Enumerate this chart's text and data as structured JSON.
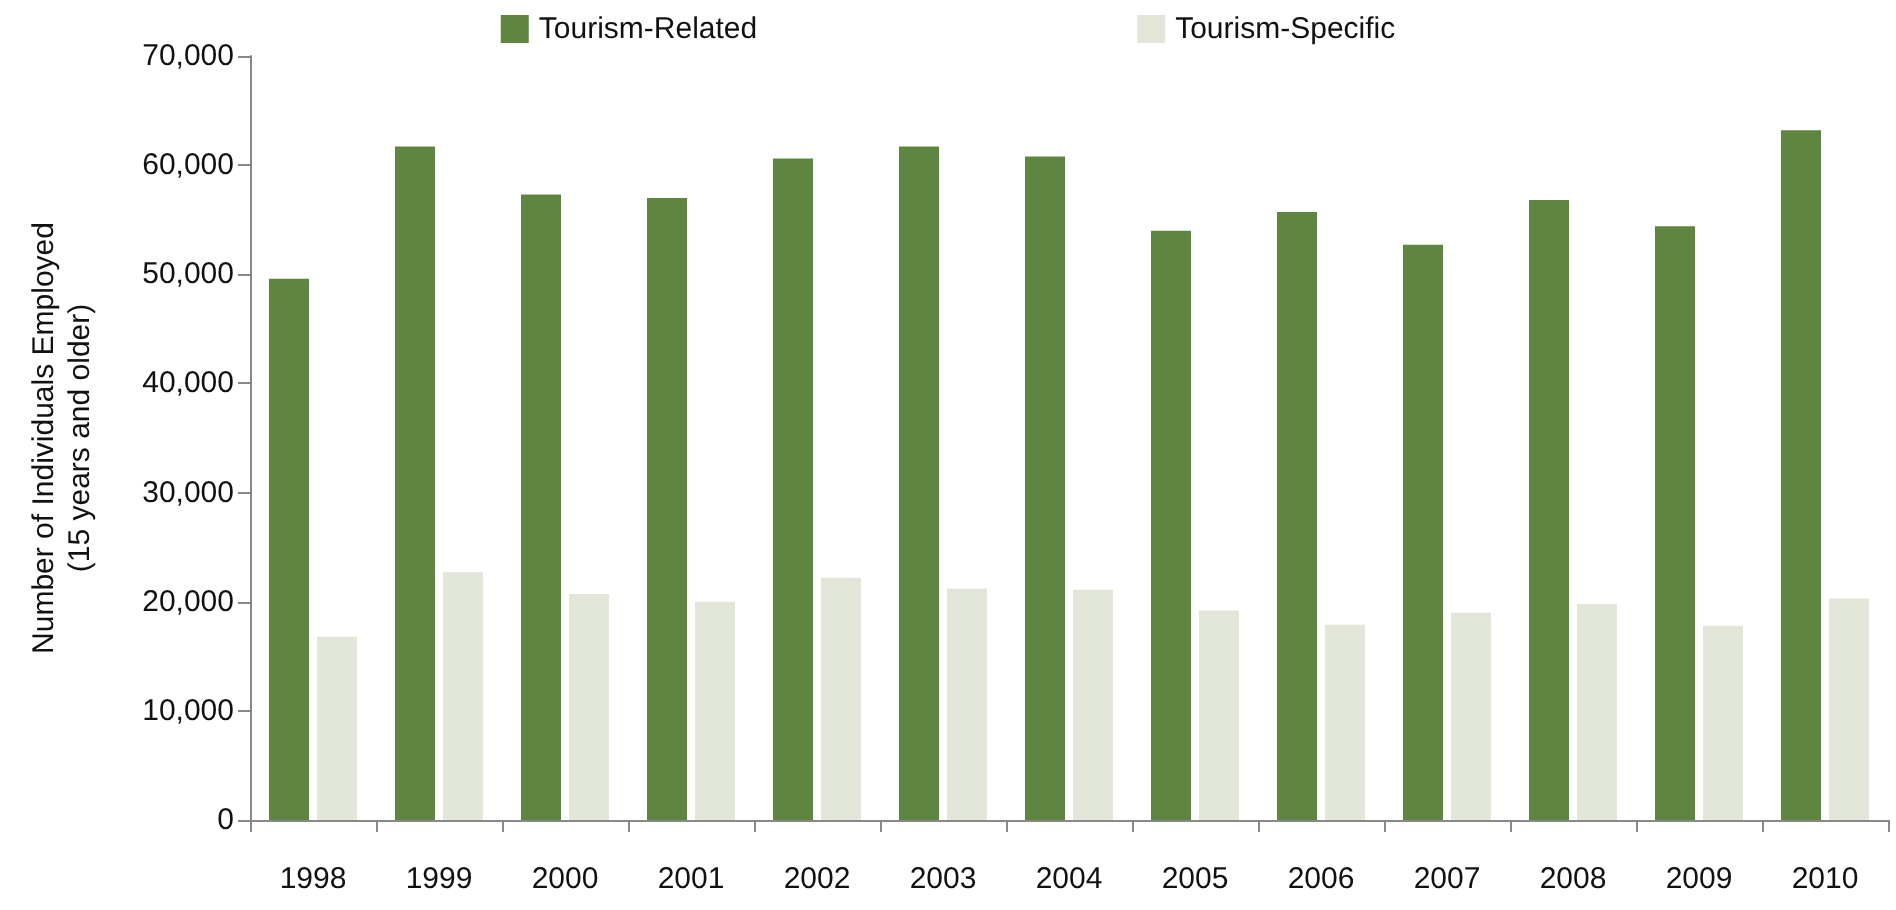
{
  "chart_data": {
    "type": "bar",
    "ylabel": "Number of Individuals Employed\n(15 years and older)",
    "categories": [
      "1998",
      "1999",
      "2000",
      "2001",
      "2002",
      "2003",
      "2004",
      "2005",
      "2006",
      "2007",
      "2008",
      "2009",
      "2010"
    ],
    "series": [
      {
        "name": "Tourism-Related",
        "color": "#5f8640",
        "values": [
          49600,
          61700,
          57300,
          57000,
          60600,
          61700,
          60800,
          54000,
          55700,
          52700,
          56800,
          54400,
          63200
        ]
      },
      {
        "name": "Tourism-Specific",
        "color": "#e2e6d8",
        "values": [
          16800,
          22700,
          20700,
          20000,
          22200,
          21200,
          21100,
          19200,
          17900,
          19000,
          19800,
          17800,
          20300
        ]
      }
    ],
    "ylim": [
      0,
      70000
    ],
    "yticks": [
      0,
      {
        "value": 10000,
        "label": "10,000"
      },
      {
        "value": 20000,
        "label": "20,000"
      },
      {
        "value": 30000,
        "label": "30,000"
      },
      {
        "value": 40000,
        "label": "40,000"
      },
      {
        "value": 50000,
        "label": "50,000"
      },
      {
        "value": 60000,
        "label": "60,000"
      },
      {
        "value": 70000,
        "label": "70,000"
      }
    ],
    "grid": false,
    "legend": "top"
  }
}
